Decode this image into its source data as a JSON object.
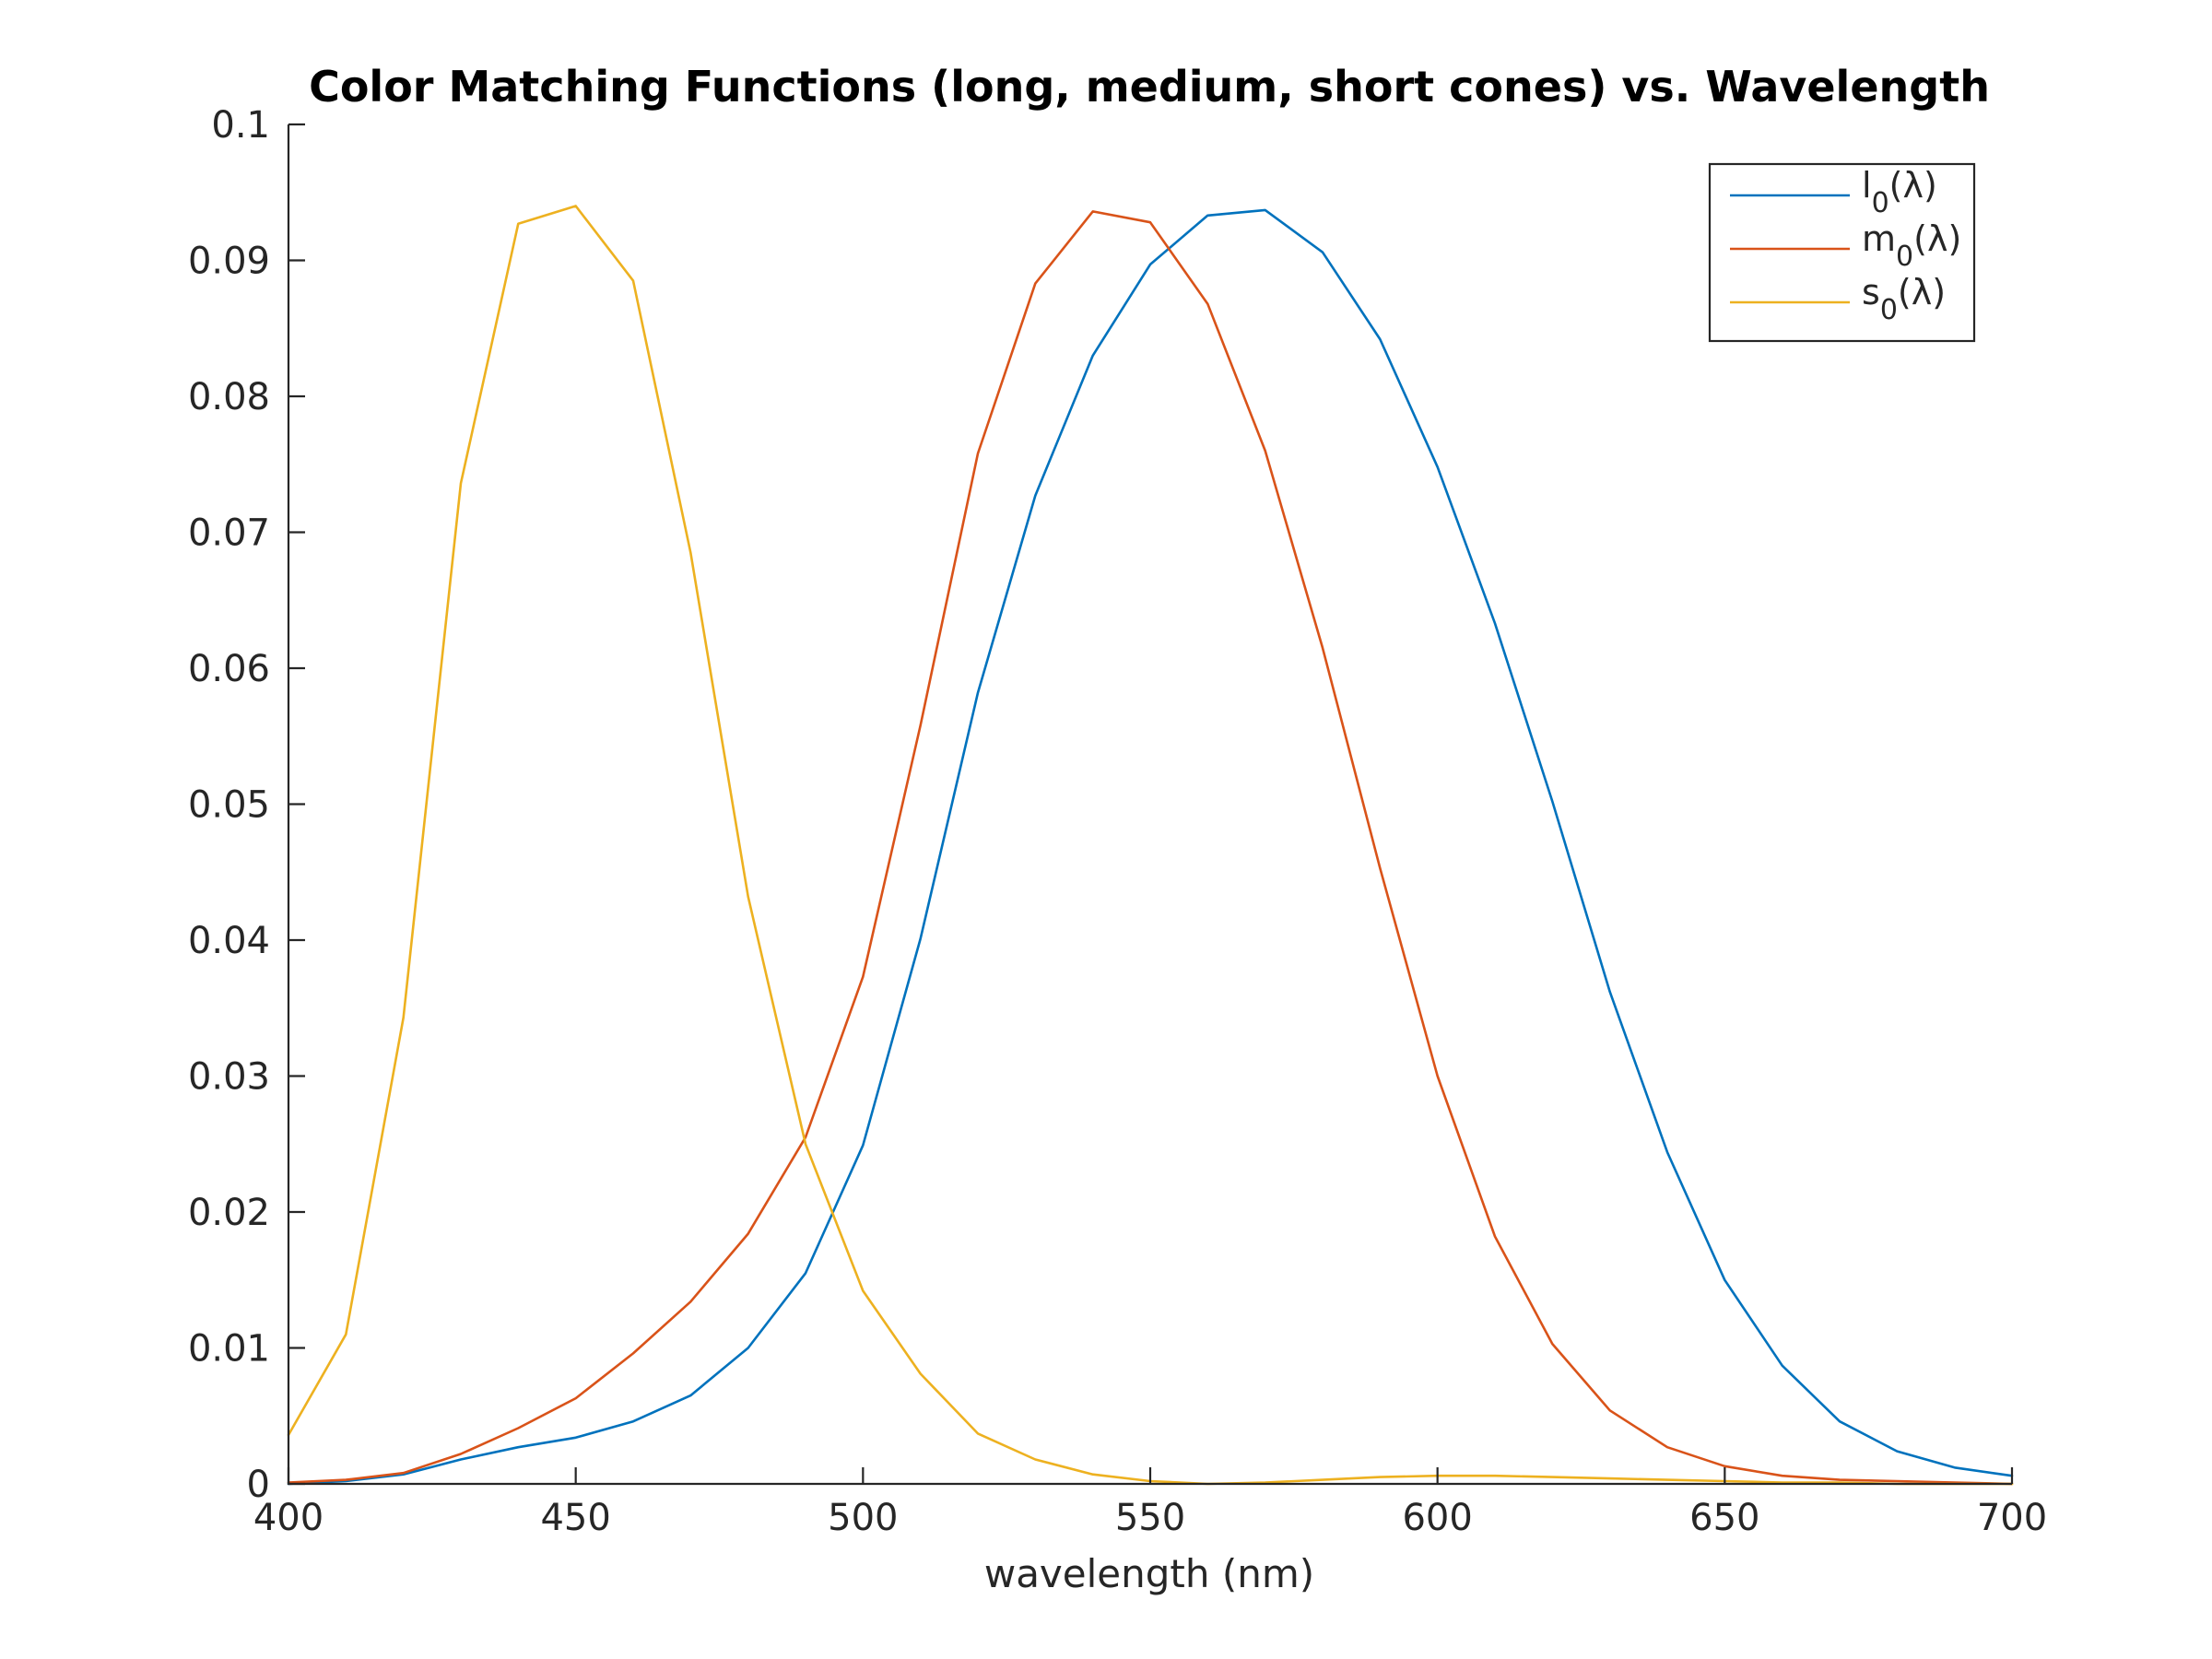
{
  "chart_data": {
    "type": "line",
    "title": "Color Matching Functions (long, medium, short cones) vs. Wavelength",
    "xlabel": "wavelength (nm)",
    "ylabel": "",
    "xlim": [
      400,
      700
    ],
    "ylim": [
      0,
      0.1
    ],
    "grid": false,
    "legend_position": "top-right",
    "x_ticks": [
      "400",
      "450",
      "500",
      "550",
      "600",
      "650",
      "700"
    ],
    "y_ticks": [
      "0",
      "0.01",
      "0.02",
      "0.03",
      "0.04",
      "0.05",
      "0.06",
      "0.07",
      "0.08",
      "0.09",
      "0.1"
    ],
    "x": [
      400,
      410,
      420,
      430,
      440,
      450,
      460,
      470,
      480,
      490,
      500,
      510,
      520,
      530,
      540,
      550,
      560,
      570,
      580,
      590,
      600,
      610,
      620,
      630,
      640,
      650,
      660,
      670,
      680,
      690,
      700
    ],
    "series": [
      {
        "name": "l",
        "subscript": "0",
        "arg": "(λ)",
        "color": "#0072BD",
        "values": [
          0.0,
          0.0002,
          0.0007,
          0.0018,
          0.0027,
          0.0034,
          0.0046,
          0.0065,
          0.01,
          0.0155,
          0.0249,
          0.0401,
          0.0582,
          0.0727,
          0.083,
          0.0897,
          0.0933,
          0.0937,
          0.0906,
          0.0842,
          0.0748,
          0.0633,
          0.0502,
          0.0362,
          0.0244,
          0.015,
          0.0087,
          0.0046,
          0.0024,
          0.0012,
          0.0006
        ]
      },
      {
        "name": "m",
        "subscript": "0",
        "arg": "(λ)",
        "color": "#D95319",
        "values": [
          0.0001,
          0.0003,
          0.0008,
          0.0022,
          0.0041,
          0.0063,
          0.0096,
          0.0134,
          0.0184,
          0.0255,
          0.0373,
          0.0558,
          0.0758,
          0.0883,
          0.0936,
          0.0928,
          0.0868,
          0.076,
          0.0615,
          0.0453,
          0.03,
          0.0182,
          0.0103,
          0.0054,
          0.0027,
          0.0013,
          0.0006,
          0.0003,
          0.0002,
          0.0001,
          0.0
        ]
      },
      {
        "name": "s",
        "subscript": "0",
        "arg": "(λ)",
        "color": "#EDB120",
        "values": [
          0.0036,
          0.011,
          0.0343,
          0.0736,
          0.0927,
          0.094,
          0.0885,
          0.0685,
          0.0432,
          0.025,
          0.0142,
          0.0081,
          0.0037,
          0.0018,
          0.0007,
          0.0002,
          0.0,
          0.0001,
          0.0003,
          0.0005,
          0.0006,
          0.0006,
          0.0005,
          0.0004,
          0.0003,
          0.0002,
          0.0001,
          0.0001,
          0.0,
          0.0,
          0.0
        ]
      }
    ]
  }
}
